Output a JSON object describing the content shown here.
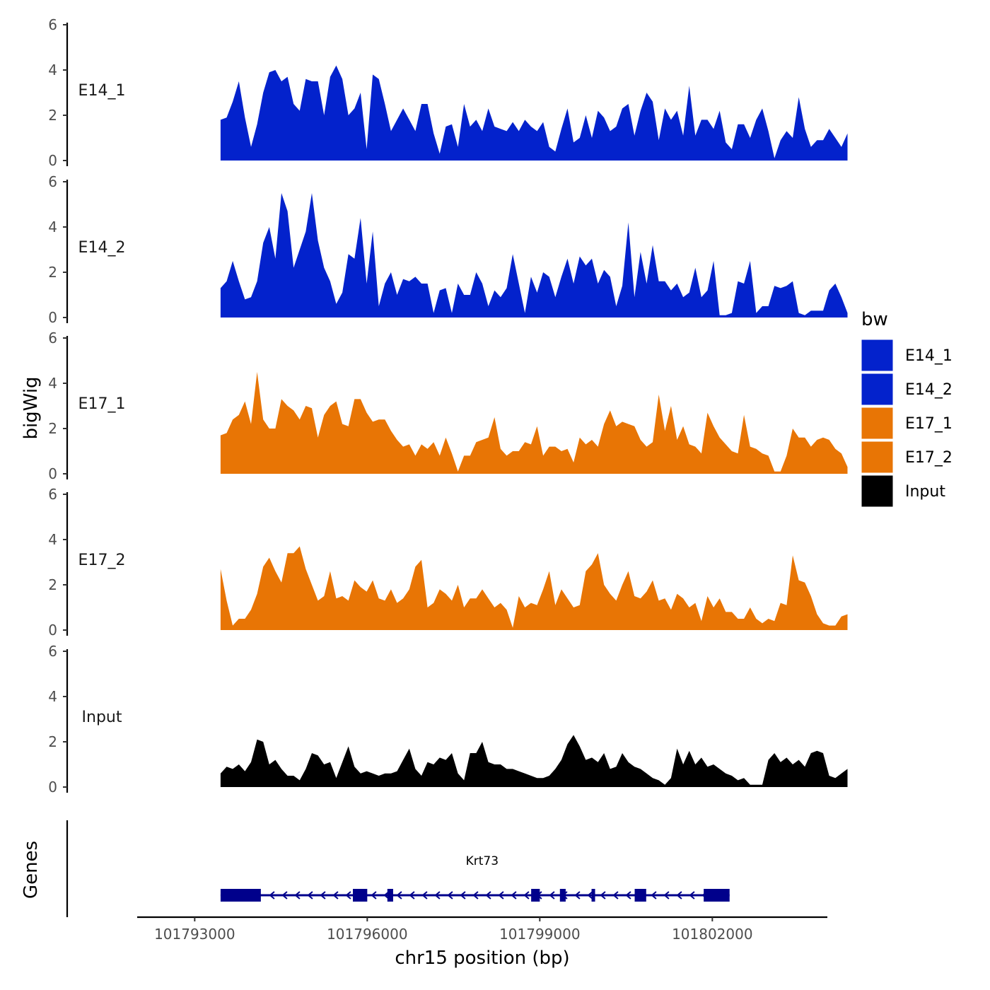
{
  "chart_data": {
    "type": "area",
    "chromosome": "chr15",
    "xlabel": "chr15 position (bp)",
    "ylabel": "bigWig",
    "genes_label": "Genes",
    "xlim": [
      101792000,
      101804000
    ],
    "data_range": [
      101793450,
      101804350
    ],
    "x_ticks": [
      101793000,
      101796000,
      101799000,
      101802000
    ],
    "x_tick_labels": [
      "101793000",
      "101796000",
      "101799000",
      "101802000"
    ],
    "ylim": [
      0,
      6
    ],
    "y_ticks": [
      0,
      2,
      4,
      6
    ],
    "y_tick_labels": [
      "0",
      "2",
      "4",
      "6"
    ],
    "legend": {
      "title": "bw",
      "position": "right",
      "entries": [
        {
          "label": "E14_1",
          "color": "#0322CC"
        },
        {
          "label": "E14_2",
          "color": "#0322CC"
        },
        {
          "label": "E17_1",
          "color": "#E87505"
        },
        {
          "label": "E17_2",
          "color": "#E87505"
        },
        {
          "label": "Input",
          "color": "#000000"
        }
      ]
    },
    "tracks": [
      {
        "name": "E14_1",
        "color": "#0322CC",
        "values": [
          1.8,
          1.9,
          2.6,
          3.5,
          1.9,
          0.6,
          1.6,
          3.0,
          3.9,
          4.0,
          3.5,
          3.7,
          2.5,
          2.2,
          3.6,
          3.5,
          3.5,
          2.0,
          3.7,
          4.2,
          3.6,
          2.0,
          2.3,
          3.0,
          0.5,
          3.8,
          3.6,
          2.5,
          1.3,
          1.8,
          2.3,
          1.8,
          1.3,
          2.5,
          2.5,
          1.2,
          0.3,
          1.5,
          1.6,
          0.6,
          2.5,
          1.5,
          1.8,
          1.3,
          2.3,
          1.5,
          1.4,
          1.3,
          1.7,
          1.3,
          1.8,
          1.5,
          1.3,
          1.7,
          0.6,
          0.4,
          1.4,
          2.3,
          0.8,
          1.0,
          2.0,
          1.0,
          2.2,
          1.9,
          1.3,
          1.5,
          2.3,
          2.5,
          1.1,
          2.2,
          3.0,
          2.6,
          0.9,
          2.3,
          1.8,
          2.2,
          1.1,
          3.3,
          1.1,
          1.8,
          1.8,
          1.4,
          2.2,
          0.8,
          0.5,
          1.6,
          1.6,
          1.0,
          1.8,
          2.3,
          1.3,
          0.1,
          0.9,
          1.3,
          1.0,
          2.8,
          1.4,
          0.6,
          0.9,
          0.9,
          1.4,
          1.0,
          0.6,
          1.2
        ]
      },
      {
        "name": "E14_2",
        "color": "#0322CC",
        "values": [
          1.3,
          1.6,
          2.5,
          1.6,
          0.8,
          0.9,
          1.6,
          3.3,
          4.0,
          2.6,
          5.5,
          4.7,
          2.2,
          3.0,
          3.8,
          5.5,
          3.4,
          2.2,
          1.6,
          0.6,
          1.1,
          2.8,
          2.6,
          4.4,
          1.5,
          3.8,
          0.5,
          1.5,
          2.0,
          1.0,
          1.7,
          1.6,
          1.8,
          1.5,
          1.5,
          0.2,
          1.2,
          1.3,
          0.2,
          1.5,
          1.0,
          1.0,
          2.0,
          1.5,
          0.5,
          1.2,
          0.9,
          1.3,
          2.8,
          1.5,
          0.2,
          1.8,
          1.1,
          2.0,
          1.8,
          0.9,
          1.8,
          2.6,
          1.5,
          2.7,
          2.3,
          2.6,
          1.5,
          2.1,
          1.8,
          0.5,
          1.4,
          4.2,
          0.9,
          2.9,
          1.5,
          3.2,
          1.6,
          1.6,
          1.2,
          1.5,
          0.9,
          1.1,
          2.2,
          0.9,
          1.2,
          2.5,
          0.1,
          0.1,
          0.2,
          1.6,
          1.5,
          2.5,
          0.2,
          0.5,
          0.5,
          1.4,
          1.3,
          1.4,
          1.6,
          0.2,
          0.1,
          0.3,
          0.3,
          0.3,
          1.2,
          1.5,
          0.9,
          0.2
        ]
      },
      {
        "name": "E17_1",
        "color": "#E87505",
        "values": [
          1.7,
          1.8,
          2.4,
          2.6,
          3.2,
          2.2,
          4.5,
          2.4,
          2.0,
          2.0,
          3.3,
          3.0,
          2.8,
          2.4,
          3.0,
          2.9,
          1.6,
          2.6,
          3.0,
          3.2,
          2.2,
          2.1,
          3.3,
          3.3,
          2.7,
          2.3,
          2.4,
          2.4,
          1.9,
          1.5,
          1.2,
          1.3,
          0.8,
          1.3,
          1.1,
          1.4,
          0.8,
          1.6,
          0.9,
          0.1,
          0.8,
          0.8,
          1.4,
          1.5,
          1.6,
          2.5,
          1.1,
          0.8,
          1.0,
          1.0,
          1.4,
          1.3,
          2.1,
          0.8,
          1.2,
          1.2,
          1.0,
          1.1,
          0.5,
          1.6,
          1.3,
          1.5,
          1.2,
          2.2,
          2.8,
          2.1,
          2.3,
          2.2,
          2.1,
          1.5,
          1.2,
          1.4,
          3.5,
          1.9,
          3.0,
          1.5,
          2.1,
          1.3,
          1.2,
          0.9,
          2.7,
          2.1,
          1.6,
          1.3,
          1.0,
          0.9,
          2.6,
          1.2,
          1.1,
          0.9,
          0.8,
          0.1,
          0.1,
          0.8,
          2.0,
          1.6,
          1.6,
          1.2,
          1.5,
          1.6,
          1.5,
          1.1,
          0.9,
          0.3
        ]
      },
      {
        "name": "E17_2",
        "color": "#E87505",
        "values": [
          2.7,
          1.3,
          0.2,
          0.5,
          0.5,
          0.9,
          1.6,
          2.8,
          3.2,
          2.6,
          2.1,
          3.4,
          3.4,
          3.7,
          2.7,
          2.0,
          1.3,
          1.5,
          2.6,
          1.4,
          1.5,
          1.3,
          2.2,
          1.9,
          1.7,
          2.2,
          1.4,
          1.3,
          1.8,
          1.2,
          1.4,
          1.8,
          2.8,
          3.1,
          1.0,
          1.2,
          1.8,
          1.6,
          1.3,
          2.0,
          1.0,
          1.4,
          1.4,
          1.8,
          1.4,
          1.0,
          1.2,
          0.9,
          0.1,
          1.5,
          1.0,
          1.2,
          1.1,
          1.8,
          2.6,
          1.1,
          1.8,
          1.4,
          1.0,
          1.1,
          2.6,
          2.9,
          3.4,
          2.0,
          1.6,
          1.3,
          2.0,
          2.6,
          1.5,
          1.4,
          1.7,
          2.2,
          1.3,
          1.4,
          0.9,
          1.6,
          1.4,
          1.0,
          1.2,
          0.4,
          1.5,
          1.0,
          1.4,
          0.8,
          0.8,
          0.5,
          0.5,
          1.0,
          0.5,
          0.3,
          0.5,
          0.4,
          1.2,
          1.1,
          3.3,
          2.2,
          2.1,
          1.5,
          0.7,
          0.3,
          0.2,
          0.2,
          0.6,
          0.7
        ]
      },
      {
        "name": "Input",
        "color": "#000000",
        "values": [
          0.6,
          0.9,
          0.8,
          1.0,
          0.7,
          1.1,
          2.1,
          2.0,
          1.0,
          1.2,
          0.8,
          0.5,
          0.5,
          0.3,
          0.8,
          1.5,
          1.4,
          1.0,
          1.1,
          0.4,
          1.1,
          1.8,
          0.9,
          0.6,
          0.7,
          0.6,
          0.5,
          0.6,
          0.6,
          0.7,
          1.2,
          1.7,
          0.8,
          0.5,
          1.1,
          1.0,
          1.3,
          1.2,
          1.5,
          0.6,
          0.3,
          1.5,
          1.5,
          2.0,
          1.1,
          1.0,
          1.0,
          0.8,
          0.8,
          0.7,
          0.6,
          0.5,
          0.4,
          0.4,
          0.5,
          0.8,
          1.2,
          1.9,
          2.3,
          1.8,
          1.2,
          1.3,
          1.1,
          1.5,
          0.8,
          0.9,
          1.5,
          1.1,
          0.9,
          0.8,
          0.6,
          0.4,
          0.3,
          0.1,
          0.4,
          1.7,
          1.0,
          1.6,
          1.0,
          1.3,
          0.9,
          1.0,
          0.8,
          0.6,
          0.5,
          0.3,
          0.4,
          0.1,
          0.1,
          0.1,
          1.2,
          1.5,
          1.1,
          1.3,
          1.0,
          1.2,
          0.9,
          1.5,
          1.6,
          1.5,
          0.5,
          0.4,
          0.6,
          0.8
        ]
      }
    ],
    "genes": [
      {
        "name": "Krt73",
        "strand": "-",
        "start": 101793450,
        "end": 101802300,
        "exons": [
          [
            101793450,
            101794150
          ],
          [
            101795750,
            101796000
          ],
          [
            101796350,
            101796450
          ],
          [
            101798850,
            101799000
          ],
          [
            101799350,
            101799450
          ],
          [
            101799900,
            101799950
          ],
          [
            101800650,
            101800850
          ],
          [
            101801850,
            101802300
          ]
        ]
      }
    ]
  }
}
